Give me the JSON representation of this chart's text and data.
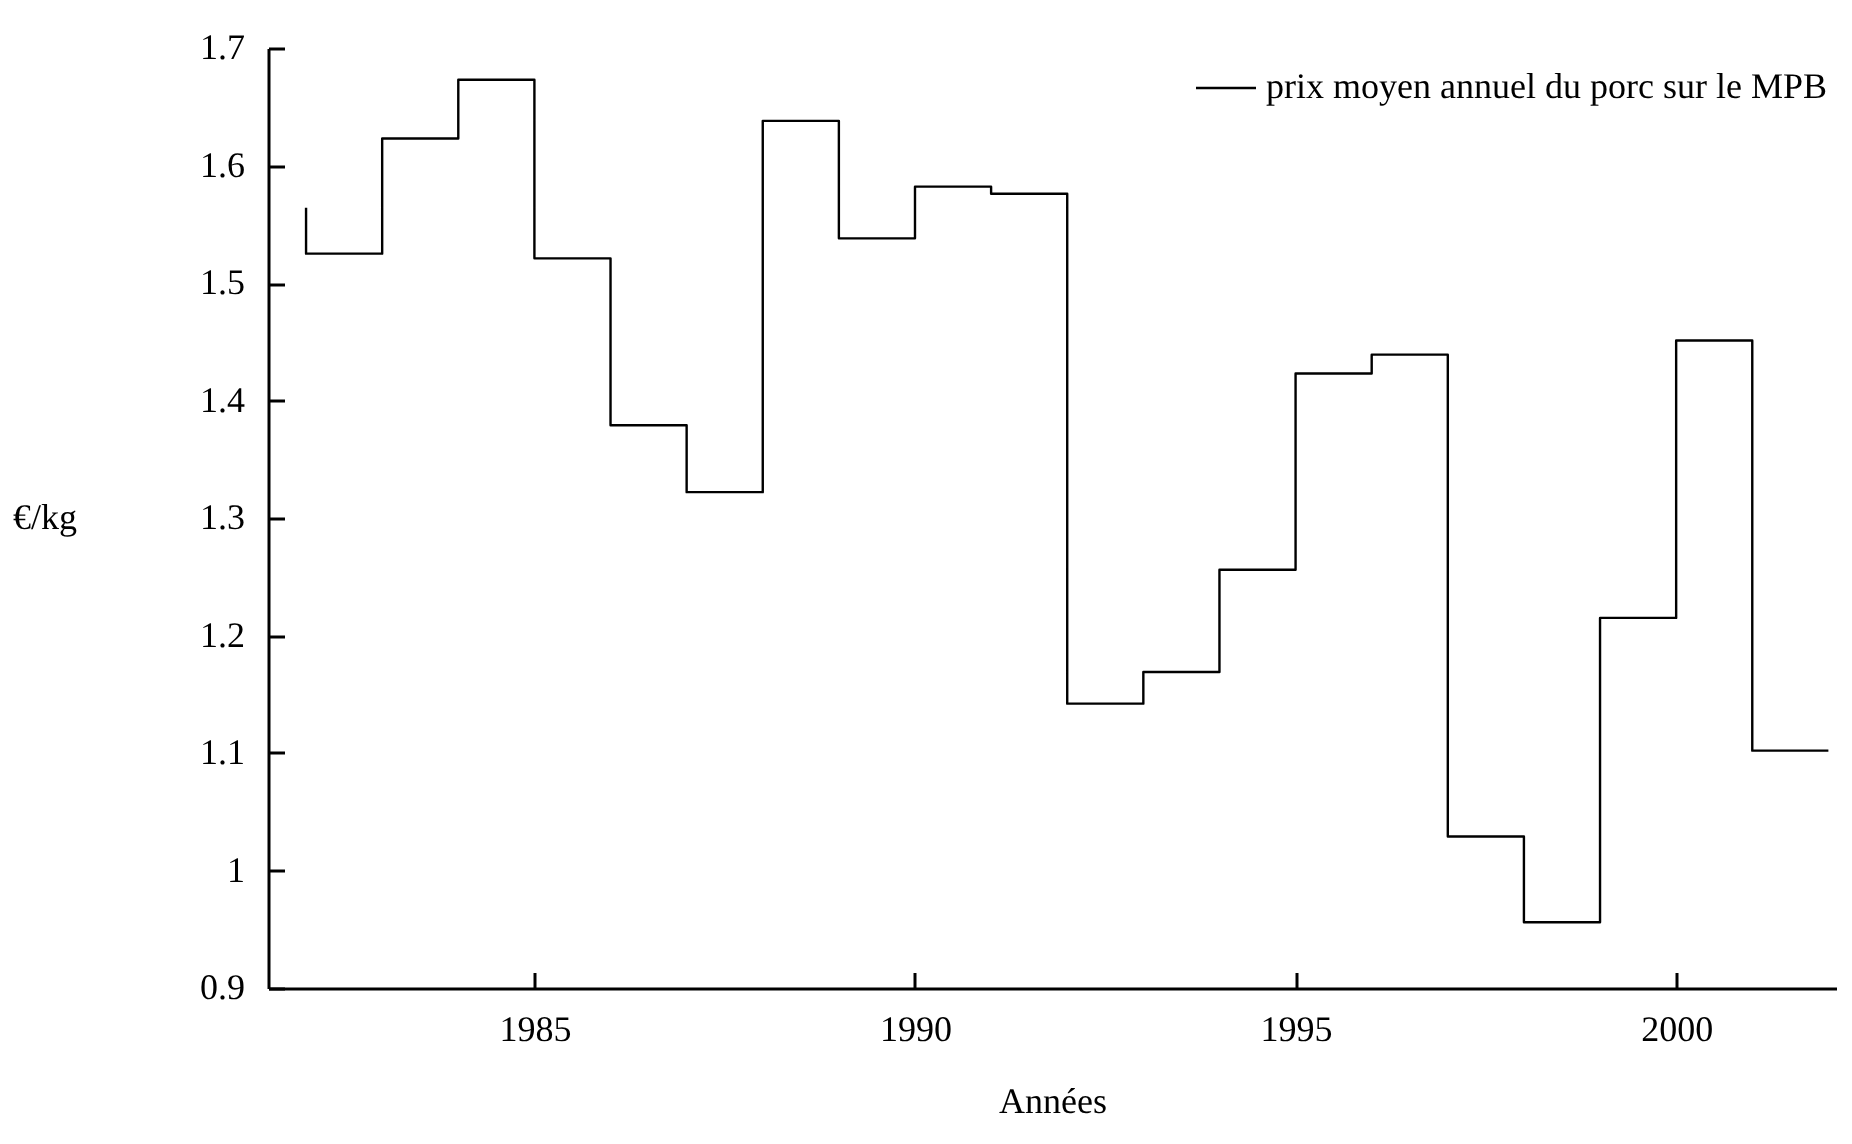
{
  "chart_data": {
    "type": "step",
    "xlabel": "Années",
    "ylabel": "€/kg",
    "x": [
      1982,
      1983,
      1984,
      1985,
      1986,
      1987,
      1988,
      1989,
      1990,
      1991,
      1992,
      1993,
      1994,
      1995,
      1996,
      1997,
      1998,
      1999,
      2000,
      2001,
      2002
    ],
    "series": [
      {
        "name": "prix moyen annuel du porc sur le MPB",
        "color": "#000000",
        "values": [
          1.564,
          1.525,
          1.623,
          1.673,
          1.521,
          1.379,
          1.322,
          1.638,
          1.538,
          1.582,
          1.576,
          1.142,
          1.169,
          1.256,
          1.423,
          1.439,
          1.029,
          0.956,
          1.215,
          1.451,
          1.102
        ]
      }
    ],
    "xlim": [
      1981.5,
      2002.1
    ],
    "xticks": [
      1985,
      1990,
      1995,
      2000
    ],
    "ylim": [
      0.9,
      1.7
    ],
    "yticks": [
      0.9,
      1,
      1.1,
      1.2,
      1.3,
      1.4,
      1.5,
      1.6,
      1.7
    ],
    "legend": "top right",
    "marker": "none",
    "line_style": "solid"
  }
}
